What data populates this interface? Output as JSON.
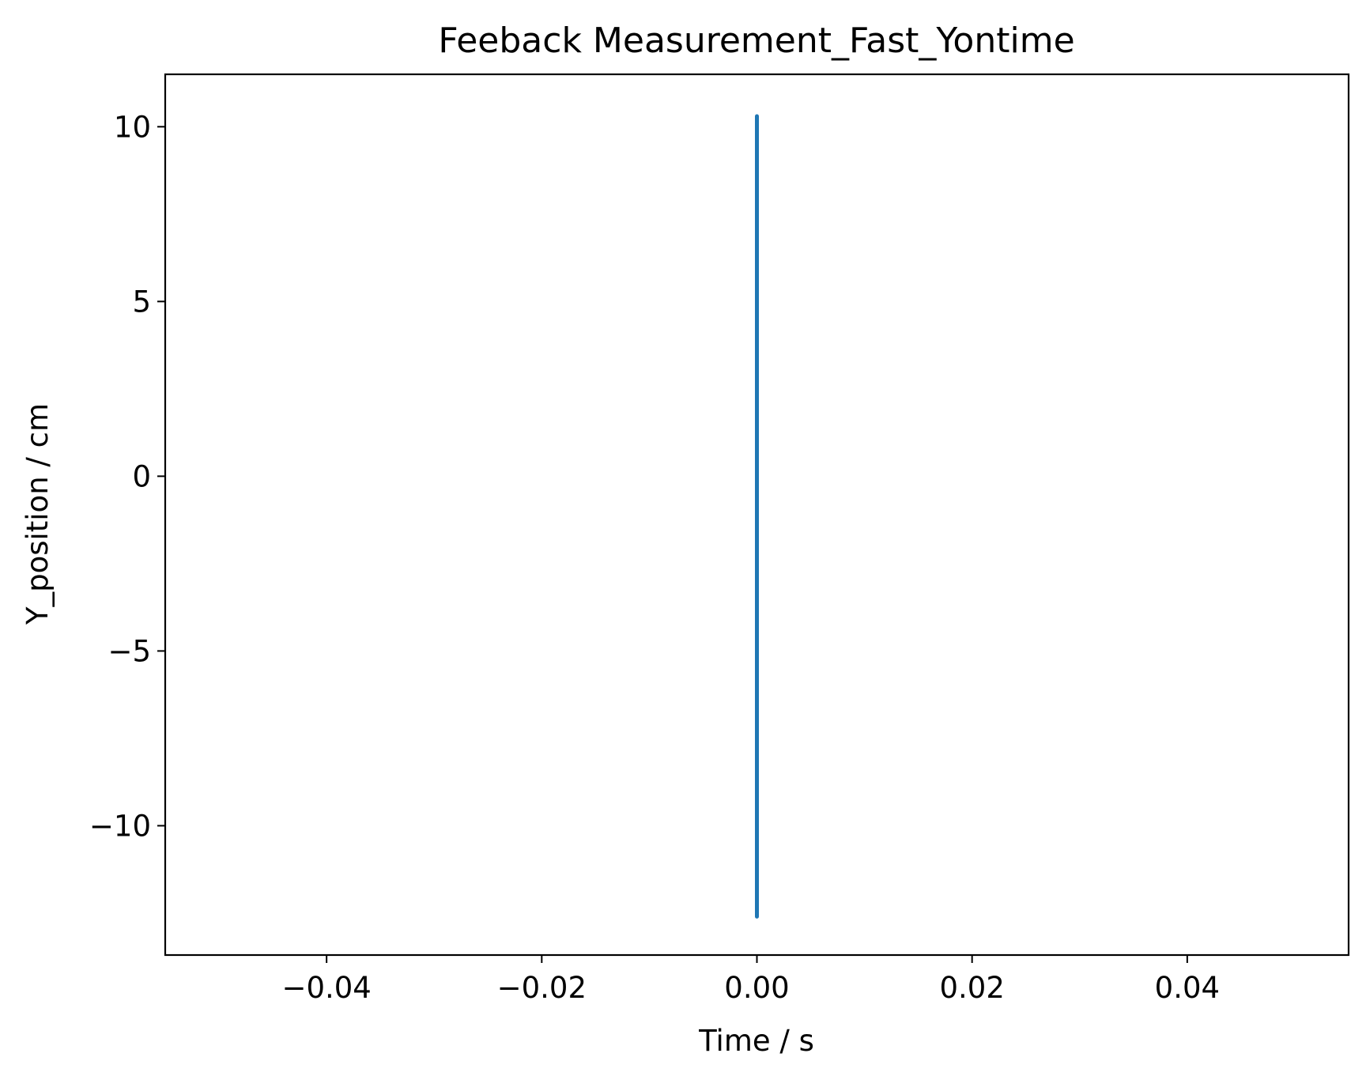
{
  "chart_data": {
    "type": "line",
    "title": "Feeback Measurement_Fast_Yontime",
    "xlabel": "Time / s",
    "ylabel": "Y_position / cm",
    "xlim": [
      -0.055,
      0.055
    ],
    "ylim": [
      -13.7,
      11.5
    ],
    "xticks": [
      -0.04,
      -0.02,
      0.0,
      0.02,
      0.04
    ],
    "xtick_labels": [
      "−0.04",
      "−0.02",
      "0.00",
      "0.02",
      "0.04"
    ],
    "yticks": [
      10,
      5,
      0,
      -5,
      -10
    ],
    "ytick_labels": [
      "10",
      "5",
      "0",
      "−5",
      "−10"
    ],
    "grid": false,
    "series": [
      {
        "name": "Y_position",
        "color": "#1f77b4",
        "x": [
          0.0,
          0.0,
          0.0,
          0.0,
          0.0
        ],
        "y": [
          10.3,
          5.0,
          0.4,
          -2.5,
          -12.6
        ]
      }
    ]
  }
}
